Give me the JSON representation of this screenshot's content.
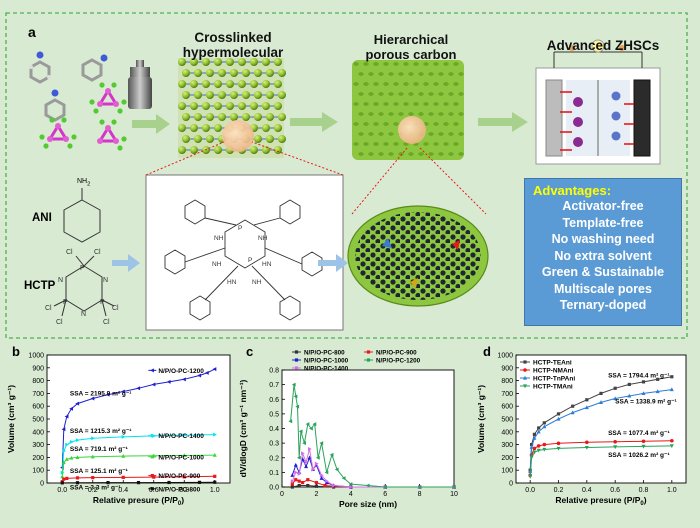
{
  "panel_a": {
    "letter": "a",
    "titles": {
      "crosslinked": "Crosslinked",
      "hypermolecular": "hypermolecular",
      "hierarchical": "Hierarchical",
      "porous_carbon": "porous carbon",
      "zhscs": "Advanced ZHSCs"
    },
    "labels": {
      "ani": "ANI",
      "hctp": "HCTP",
      "nh2": "NH",
      "nh2_sub": "2"
    },
    "advantages_title": "Advantages:",
    "advantages": [
      "Activator-free",
      "Template-free",
      "No washing need",
      "No extra solvent",
      "Green & Sustainable",
      "Multiscale pores",
      "Ternary-doped"
    ],
    "colors": {
      "bg": "#d9ead3",
      "dash_border": "#4caf50",
      "adv_box": "#5b9bd5",
      "adv_title": "#ffff00",
      "arrow": "#a9d18e",
      "blue_arrow": "#9dc3e6"
    }
  },
  "chart_data": [
    {
      "panel": "b",
      "type": "line",
      "xlabel": "Relative presure (P/P",
      "xlabel_sub": "0",
      "xlabel_end": ")",
      "ylabel": "Volume (cm³ g⁻¹)",
      "xlim": [
        -0.1,
        1.1
      ],
      "ylim": [
        0,
        1000
      ],
      "xticks": [
        "0.0",
        "0.2",
        "0.4",
        "0.6",
        "0.8",
        "1.0"
      ],
      "yticks": [
        "0",
        "100",
        "200",
        "300",
        "400",
        "500",
        "600",
        "700",
        "800",
        "900",
        "1000"
      ],
      "series": [
        {
          "name": "N/P/O-PC-1200",
          "color": "#1f1fd0",
          "x": [
            0.0,
            0.01,
            0.03,
            0.06,
            0.1,
            0.2,
            0.3,
            0.4,
            0.5,
            0.6,
            0.7,
            0.8,
            0.9,
            0.95,
            1.0
          ],
          "y": [
            120,
            420,
            520,
            580,
            620,
            660,
            690,
            715,
            740,
            770,
            790,
            810,
            840,
            860,
            890
          ],
          "ssa": "SSA = 2195.9 m² g⁻¹"
        },
        {
          "name": "N/P/O-PC-1400",
          "color": "#00e5ee",
          "x": [
            0.0,
            0.01,
            0.03,
            0.06,
            0.1,
            0.2,
            0.4,
            0.6,
            0.8,
            1.0
          ],
          "y": [
            80,
            250,
            300,
            320,
            335,
            350,
            360,
            368,
            373,
            378
          ],
          "ssa": "SSA = 1215.3 m² g⁻¹"
        },
        {
          "name": "N/P/O-PC-1000",
          "color": "#3cd63c",
          "x": [
            0.0,
            0.01,
            0.03,
            0.06,
            0.1,
            0.2,
            0.4,
            0.6,
            0.8,
            1.0
          ],
          "y": [
            50,
            160,
            185,
            195,
            200,
            205,
            210,
            213,
            215,
            218
          ],
          "ssa": "SSA = 719.1 m² g⁻¹"
        },
        {
          "name": "N/P/O-PC-900",
          "color": "#e81919",
          "x": [
            0.0,
            0.01,
            0.03,
            0.1,
            0.2,
            0.4,
            0.6,
            0.8,
            1.0
          ],
          "y": [
            10,
            30,
            36,
            40,
            42,
            44,
            46,
            48,
            52
          ],
          "ssa": "SSA = 125.1 m² g⁻¹"
        },
        {
          "name": "N/P/O-PC-800",
          "color": "#111111",
          "x": [
            0.0,
            0.1,
            0.3,
            0.5,
            0.7,
            0.9,
            1.0
          ],
          "y": [
            1,
            2,
            3,
            3,
            4,
            5,
            6
          ],
          "ssa": "SSA = 3.3 m² g⁻¹"
        }
      ]
    },
    {
      "panel": "c",
      "type": "line",
      "xlabel": "Pore size (nm)",
      "ylabel": "dV/dlogD (cm³ g⁻¹ nm⁻¹)",
      "xlim": [
        0,
        10
      ],
      "ylim": [
        0,
        0.8
      ],
      "xticks": [
        "0",
        "2",
        "4",
        "6",
        "8",
        "10"
      ],
      "yticks": [
        "0.0",
        "0.1",
        "0.2",
        "0.3",
        "0.4",
        "0.5",
        "0.6",
        "0.7",
        "0.8"
      ],
      "series": [
        {
          "name": "N/P/O-PC-800",
          "color": "#333333",
          "x": [
            0.6,
            1,
            1.5,
            2,
            3,
            4,
            6,
            8,
            10
          ],
          "y": [
            0,
            0.01,
            0.01,
            0.005,
            0,
            0,
            0,
            0,
            0
          ]
        },
        {
          "name": "N/P/O-PC-900",
          "color": "#e81919",
          "x": [
            0.6,
            0.8,
            1.0,
            1.2,
            1.5,
            2,
            2.5,
            3,
            4,
            6,
            8,
            10
          ],
          "y": [
            0.02,
            0.05,
            0.04,
            0.03,
            0.05,
            0.03,
            0.01,
            0.005,
            0,
            0,
            0,
            0
          ]
        },
        {
          "name": "N/P/O-PC-1000",
          "color": "#1f1fd0",
          "x": [
            0.6,
            0.8,
            1.0,
            1.2,
            1.4,
            1.6,
            1.8,
            2.0,
            2.3,
            2.6,
            3,
            4,
            6,
            8,
            10
          ],
          "y": [
            0.08,
            0.15,
            0.1,
            0.19,
            0.14,
            0.2,
            0.12,
            0.15,
            0.06,
            0.03,
            0.01,
            0,
            0,
            0,
            0
          ]
        },
        {
          "name": "N/P/O-PC-1400",
          "color": "#d36ee6",
          "x": [
            0.6,
            0.8,
            1.0,
            1.2,
            1.4,
            1.6,
            1.8,
            2.0,
            2.3,
            2.6,
            3,
            4,
            6,
            8,
            10
          ],
          "y": [
            0.04,
            0.1,
            0.09,
            0.23,
            0.17,
            0.26,
            0.12,
            0.16,
            0.08,
            0.04,
            0.01,
            0,
            0,
            0,
            0
          ]
        },
        {
          "name": "N/P/O-PC-1200",
          "color": "#2aa35a",
          "x": [
            0.5,
            0.7,
            0.8,
            0.9,
            1.0,
            1.1,
            1.3,
            1.5,
            1.7,
            1.9,
            2.1,
            2.3,
            2.6,
            2.9,
            3.2,
            3.6,
            4,
            5,
            6,
            8,
            10
          ],
          "y": [
            0.45,
            0.7,
            0.62,
            0.55,
            0.2,
            0.38,
            0.3,
            0.43,
            0.4,
            0.43,
            0.2,
            0.3,
            0.1,
            0.22,
            0.12,
            0.06,
            0.02,
            0.01,
            0,
            0,
            0
          ]
        }
      ]
    },
    {
      "panel": "d",
      "type": "line",
      "xlabel": "Relative presure (P/P",
      "xlabel_sub": "0",
      "xlabel_end": ")",
      "ylabel": "Volume (cm³ g⁻¹)",
      "xlim": [
        -0.1,
        1.1
      ],
      "ylim": [
        0,
        1000
      ],
      "xticks": [
        "0.0",
        "0.2",
        "0.4",
        "0.6",
        "0.8",
        "1.0"
      ],
      "yticks": [
        "0",
        "100",
        "200",
        "300",
        "400",
        "500",
        "600",
        "700",
        "800",
        "900",
        "1000"
      ],
      "series": [
        {
          "name": "HCTP-TEAni",
          "color": "#444444",
          "x": [
            0.0,
            0.01,
            0.03,
            0.06,
            0.1,
            0.2,
            0.3,
            0.4,
            0.5,
            0.6,
            0.7,
            0.8,
            0.9,
            1.0
          ],
          "y": [
            100,
            300,
            380,
            430,
            470,
            540,
            600,
            650,
            700,
            740,
            770,
            790,
            810,
            830
          ],
          "ssa": "SSA = 1794.4 m² g⁻¹"
        },
        {
          "name": "HCTP-NMAni",
          "color": "#e81919",
          "x": [
            0.0,
            0.01,
            0.03,
            0.06,
            0.1,
            0.2,
            0.4,
            0.6,
            0.8,
            1.0
          ],
          "y": [
            60,
            220,
            270,
            290,
            300,
            310,
            318,
            322,
            326,
            330
          ],
          "ssa": "SSA = 1077.4 m² g⁻¹"
        },
        {
          "name": "HCTP-TnPAni",
          "color": "#2e7bd6",
          "x": [
            0.0,
            0.01,
            0.03,
            0.06,
            0.1,
            0.2,
            0.3,
            0.4,
            0.5,
            0.6,
            0.7,
            0.8,
            0.9,
            1.0
          ],
          "y": [
            90,
            280,
            350,
            400,
            440,
            500,
            550,
            590,
            630,
            660,
            680,
            700,
            715,
            730
          ],
          "ssa": "SSA = 1338.9 m² g⁻¹"
        },
        {
          "name": "HCTP-TMAni",
          "color": "#2aa35a",
          "x": [
            0.0,
            0.01,
            0.03,
            0.06,
            0.1,
            0.2,
            0.4,
            0.6,
            0.8,
            1.0
          ],
          "y": [
            50,
            200,
            240,
            255,
            262,
            270,
            277,
            282,
            286,
            290
          ],
          "ssa": "SSA = 1026.2 m² g⁻¹"
        }
      ]
    }
  ]
}
